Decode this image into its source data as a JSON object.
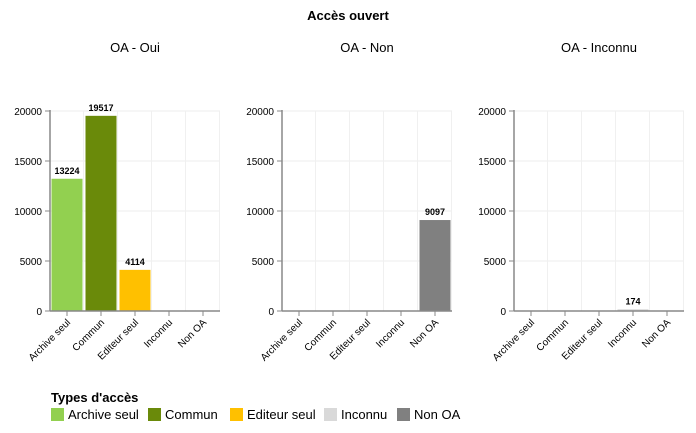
{
  "chart_data": {
    "type": "bar",
    "title": "Accès ouvert",
    "categories": [
      "Archive seul",
      "Commun",
      "Editeur seul",
      "Inconnu",
      "Non OA"
    ],
    "colors": {
      "Archive seul": "#92d050",
      "Commun": "#6a8a0a",
      "Editeur seul": "#ffc000",
      "Inconnu": "#d9d9d9",
      "Non OA": "#808080"
    },
    "ylim": [
      0,
      20000
    ],
    "yticks": [
      0,
      5000,
      10000,
      15000,
      20000
    ],
    "grid": true,
    "legend": {
      "title": "Types d'accès",
      "placement": "bottom-left",
      "entries": [
        "Archive seul",
        "Commun",
        "Editeur seul",
        "Inconnu",
        "Non OA"
      ]
    },
    "panels": [
      {
        "title": "OA - Oui",
        "values": [
          13224,
          19517,
          4114,
          0,
          0
        ],
        "labels": [
          "13224",
          "19517",
          "4114",
          "",
          ""
        ]
      },
      {
        "title": "OA - Non",
        "values": [
          0,
          0,
          0,
          0,
          9097
        ],
        "labels": [
          "",
          "",
          "",
          "",
          "9097"
        ]
      },
      {
        "title": "OA - Inconnu",
        "values": [
          0,
          0,
          0,
          174,
          0
        ],
        "labels": [
          "",
          "",
          "",
          "174",
          ""
        ]
      }
    ]
  }
}
